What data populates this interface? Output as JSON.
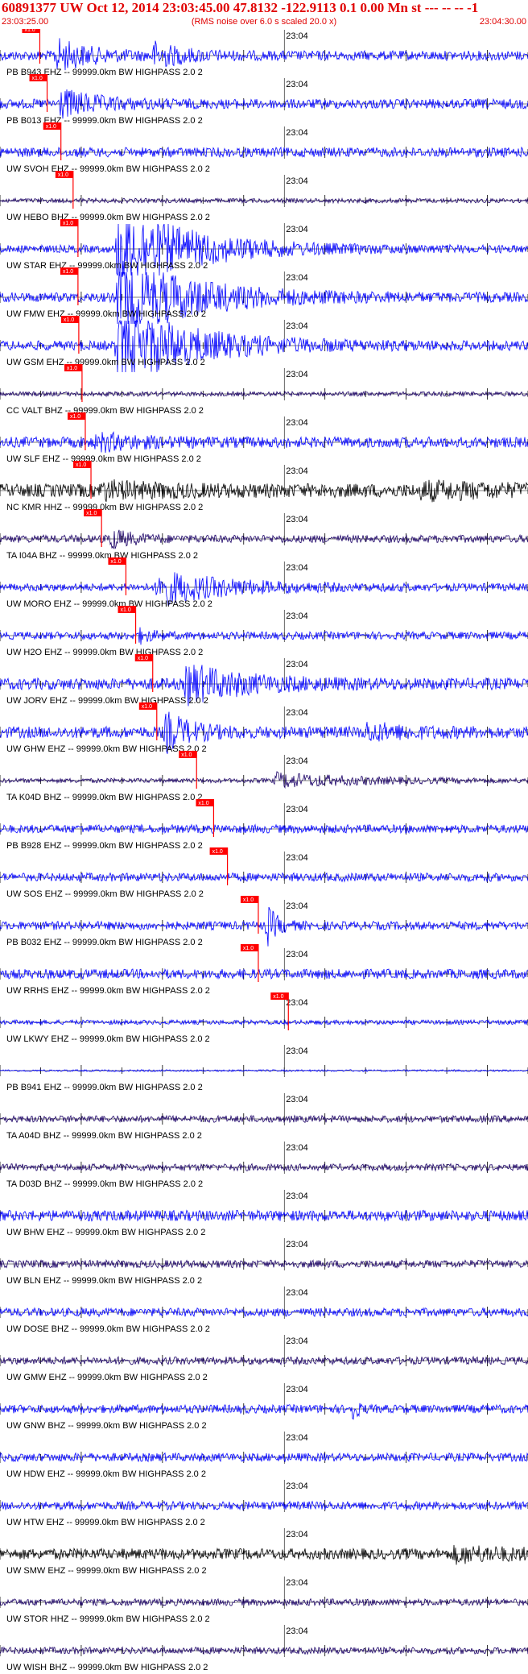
{
  "header": {
    "title": "60891377 UW Oct 12, 2014 23:03:45.00   47.8132 -122.9113  0.1 0.00 Mn st --- -- --  -1",
    "subtitle": "(RMS noise over 6.0 s scaled 20.0 x)",
    "start_time": "23:03:25.00",
    "end_time": "23:04:30.00"
  },
  "colors": {
    "trace_blue": "#0000ff",
    "trace_navy": "#1a0066",
    "trace_black": "#000000",
    "pick_red": "#ff0000",
    "text_red": "#e00000"
  },
  "chart_data": {
    "type": "line",
    "title": "60891377 UW Oct 12, 2014 23:03:45.00   47.8132 -122.9113  0.1 0.00 Mn st --- -- --  -1",
    "xlabel": "",
    "ylabel": "",
    "x_range": [
      "23:03:25.00",
      "23:04:30.00"
    ],
    "minute_mark": "23:04",
    "pick_label": "x1.0",
    "traces": [
      {
        "label": "PB B943 EHZ -- 99999.0km BW  HIGHPASS  2.0  2",
        "color": "blue",
        "amp": 0.25,
        "pick_s": 4.9,
        "events": [
          {
            "t": 7.0,
            "w": 4.0,
            "a": 0.75
          },
          {
            "t": 19.0,
            "w": 3.5,
            "a": 0.55
          }
        ]
      },
      {
        "label": "PB B013 EHZ -- 99999.0km BW  HIGHPASS  2.0  2",
        "color": "blue",
        "amp": 0.25,
        "pick_s": 5.8,
        "events": [
          {
            "t": 7.5,
            "w": 4.5,
            "a": 0.65
          }
        ]
      },
      {
        "label": "UW SVOH EHZ -- 99999.0km BW  HIGHPASS  2.0  2",
        "color": "blue",
        "amp": 0.25,
        "pick_s": 7.5,
        "events": []
      },
      {
        "label": "UW HEBO BHZ -- 99999.0km BW  HIGHPASS  2.0  2",
        "color": "navy",
        "amp": 0.12,
        "pick_s": 9.0,
        "events": []
      },
      {
        "label": "UW STAR EHZ -- 99999.0km BW  HIGHPASS  2.0  2",
        "color": "blue",
        "amp": 0.2,
        "pick_s": 9.6,
        "events": [
          {
            "t": 14.5,
            "w": 9.0,
            "a": 2.2
          }
        ]
      },
      {
        "label": "UW FMW EHZ -- 99999.0km BW  HIGHPASS  2.0  2",
        "color": "blue",
        "amp": 0.25,
        "pick_s": 9.6,
        "events": [
          {
            "t": 14.5,
            "w": 9.0,
            "a": 2.2
          }
        ]
      },
      {
        "label": "UW GSM EHZ -- 99999.0km BW  HIGHPASS  2.0  2",
        "color": "blue",
        "amp": 0.25,
        "pick_s": 9.7,
        "events": [
          {
            "t": 14.5,
            "w": 9.0,
            "a": 2.0
          }
        ]
      },
      {
        "label": "CC VALT BHZ -- 99999.0km BW  HIGHPASS  2.0  2",
        "color": "navy",
        "amp": 0.12,
        "pick_s": 10.1,
        "events": []
      },
      {
        "label": "UW SLF EHZ -- 99999.0km BW  HIGHPASS  2.0  2",
        "color": "blue",
        "amp": 0.28,
        "pick_s": 10.5,
        "events": [
          {
            "t": 12.0,
            "w": 5.0,
            "a": 0.35
          }
        ]
      },
      {
        "label": "NC KMR HHZ -- 99999.0km BW  HIGHPASS  2.0  2",
        "color": "black",
        "amp": 0.35,
        "pick_s": 11.2,
        "events": [
          {
            "t": 12.5,
            "w": 8.0,
            "a": 0.3
          },
          {
            "t": 52.0,
            "w": 9.0,
            "a": 0.3
          }
        ]
      },
      {
        "label": "TA I04A BHZ -- 99999.0km BW  HIGHPASS  2.0  2",
        "color": "navy",
        "amp": 0.2,
        "pick_s": 12.5,
        "events": [
          {
            "t": 13.5,
            "w": 2.5,
            "a": 0.5
          }
        ]
      },
      {
        "label": "UW MORO EHZ -- 99999.0km BW  HIGHPASS  2.0  2",
        "color": "blue",
        "amp": 0.2,
        "pick_s": 15.5,
        "events": [
          {
            "t": 19.5,
            "w": 8.0,
            "a": 0.85
          }
        ]
      },
      {
        "label": "UW H2O EHZ -- 99999.0km BW  HIGHPASS  2.0  2",
        "color": "blue",
        "amp": 0.2,
        "pick_s": 16.7,
        "events": [
          {
            "t": 17.3,
            "w": 1.5,
            "a": 0.3
          }
        ]
      },
      {
        "label": "UW JORV EHZ -- 99999.0km BW  HIGHPASS  2.0  2",
        "color": "blue",
        "amp": 0.3,
        "pick_s": 18.8,
        "events": [
          {
            "t": 23.0,
            "w": 7.0,
            "a": 0.9
          }
        ]
      },
      {
        "label": "UW GHW EHZ -- 99999.0km BW  HIGHPASS  2.0  2",
        "color": "blue",
        "amp": 0.3,
        "pick_s": 19.3,
        "events": [
          {
            "t": 20.5,
            "w": 3.0,
            "a": 0.9
          },
          {
            "t": 45.0,
            "w": 5.0,
            "a": 0.35
          }
        ]
      },
      {
        "label": "TA K04D BHZ -- 99999.0km BW  HIGHPASS  2.0  2",
        "color": "navy",
        "amp": 0.12,
        "pick_s": 24.2,
        "events": [
          {
            "t": 34.0,
            "w": 10.0,
            "a": 0.35
          }
        ]
      },
      {
        "label": "PB B928 EHZ -- 99999.0km BW  HIGHPASS  2.0  2",
        "color": "blue",
        "amp": 0.22,
        "pick_s": 26.3,
        "events": []
      },
      {
        "label": "UW SOS EHZ -- 99999.0km BW  HIGHPASS  2.0  2",
        "color": "blue",
        "amp": 0.22,
        "pick_s": 28.0,
        "events": []
      },
      {
        "label": "PB B032 EHZ -- 99999.0km BW  HIGHPASS  2.0  2",
        "color": "blue",
        "amp": 0.22,
        "pick_s": 31.8,
        "events": [
          {
            "t": 33.0,
            "w": 1.2,
            "a": 0.9
          }
        ]
      },
      {
        "label": "UW RRHS EHZ -- 99999.0km BW  HIGHPASS  2.0  2",
        "color": "blue",
        "amp": 0.25,
        "pick_s": 31.8,
        "events": []
      },
      {
        "label": "UW LKWY EHZ -- 99999.0km BW  HIGHPASS  2.0  2",
        "color": "blue",
        "amp": 0.12,
        "pick_s": 35.5,
        "events": []
      },
      {
        "label": "PB B941 EHZ -- 99999.0km BW  HIGHPASS  2.0  2",
        "color": "blue",
        "amp": 0.05,
        "pick_s": null,
        "events": []
      },
      {
        "label": "TA A04D BHZ -- 99999.0km BW  HIGHPASS  2.0  2",
        "color": "navy",
        "amp": 0.18,
        "pick_s": null,
        "events": []
      },
      {
        "label": "TA D03D BHZ -- 99999.0km BW  HIGHPASS  2.0  2",
        "color": "navy",
        "amp": 0.18,
        "pick_s": null,
        "events": []
      },
      {
        "label": "UW BHW EHZ -- 99999.0km BW  HIGHPASS  2.0  2",
        "color": "blue",
        "amp": 0.28,
        "pick_s": null,
        "events": []
      },
      {
        "label": "UW BLN EHZ -- 99999.0km BW  HIGHPASS  2.0  2",
        "color": "navy",
        "amp": 0.2,
        "pick_s": null,
        "events": []
      },
      {
        "label": "UW DOSE BHZ -- 99999.0km BW  HIGHPASS  2.0  2",
        "color": "blue",
        "amp": 0.22,
        "pick_s": null,
        "events": []
      },
      {
        "label": "UW GMW EHZ -- 99999.0km BW  HIGHPASS  2.0  2",
        "color": "navy",
        "amp": 0.2,
        "pick_s": null,
        "events": []
      },
      {
        "label": "UW GNW BHZ -- 99999.0km BW  HIGHPASS  2.0  2",
        "color": "blue",
        "amp": 0.22,
        "pick_s": null,
        "events": [
          {
            "t": 43.5,
            "w": 0.5,
            "a": 0.6
          }
        ]
      },
      {
        "label": "UW HDW EHZ -- 99999.0km BW  HIGHPASS  2.0  2",
        "color": "blue",
        "amp": 0.22,
        "pick_s": null,
        "events": []
      },
      {
        "label": "UW HTW EHZ -- 99999.0km BW  HIGHPASS  2.0  2",
        "color": "blue",
        "amp": 0.22,
        "pick_s": null,
        "events": []
      },
      {
        "label": "UW SMW EHZ -- 99999.0km BW  HIGHPASS  2.0  2",
        "color": "black",
        "amp": 0.28,
        "pick_s": null,
        "events": [
          {
            "t": 56.0,
            "w": 8.0,
            "a": 0.3
          }
        ]
      },
      {
        "label": "UW STOR HHZ -- 99999.0km BW  HIGHPASS  2.0  2",
        "color": "navy",
        "amp": 0.18,
        "pick_s": null,
        "events": []
      },
      {
        "label": "UW WISH BHZ -- 99999.0km BW  HIGHPASS  2.0  2",
        "color": "navy",
        "amp": 0.18,
        "pick_s": null,
        "events": []
      }
    ]
  }
}
